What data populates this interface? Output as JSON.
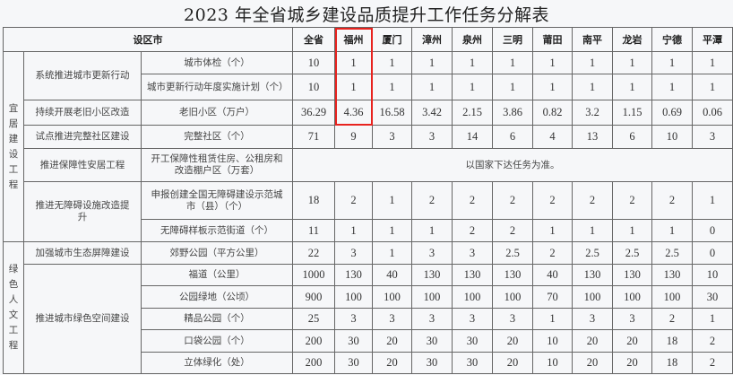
{
  "title": "2023 年全省城乡建设品质提升工作任务分解表",
  "header": {
    "region": "设区市",
    "cities": [
      "全省",
      "福州",
      "厦门",
      "漳州",
      "泉州",
      "三明",
      "莆田",
      "南平",
      "龙岩",
      "宁德",
      "平潭"
    ]
  },
  "groups": [
    {
      "label": "宜居建设工程",
      "label_chars": [
        "宜",
        "居",
        "建",
        "设",
        "工",
        "程"
      ]
    },
    {
      "label": "绿色人文工程",
      "label_chars": [
        "绿",
        "色",
        "人",
        "文",
        "工",
        "程"
      ]
    }
  ],
  "tasks": [
    "系统推进城市更新行动",
    "持续开展老旧小区改造",
    "试点推进完整社区建设",
    "推进保障性安居工程",
    "推进无障碍设施改造提升",
    "加强城市生态屏障建设",
    "推进城市绿色空间建设"
  ],
  "rows": [
    {
      "indicator": "城市体检（个）",
      "values": [
        "10",
        "1",
        "1",
        "1",
        "1",
        "1",
        "1",
        "1",
        "1",
        "1",
        "1"
      ]
    },
    {
      "indicator": "城市更新行动年度实施计划（个）",
      "values": [
        "10",
        "1",
        "1",
        "1",
        "1",
        "1",
        "1",
        "1",
        "1",
        "1",
        "1"
      ]
    },
    {
      "indicator": "老旧小区（万户）",
      "values": [
        "36.29",
        "4.36",
        "16.58",
        "3.42",
        "2.15",
        "3.86",
        "0.82",
        "3.2",
        "1.15",
        "0.69",
        "0.06"
      ]
    },
    {
      "indicator": "完整社区（个）",
      "values": [
        "71",
        "9",
        "3",
        "3",
        "14",
        "6",
        "4",
        "13",
        "6",
        "10",
        "3"
      ]
    },
    {
      "indicator": "开工保障性租赁住房、公租房和改造棚户区（万套）",
      "note": "以国家下达任务为准。"
    },
    {
      "indicator": "申报创建全国无障碍建设示范城市（县）（个）",
      "values": [
        "18",
        "2",
        "1",
        "2",
        "2",
        "2",
        "2",
        "2",
        "2",
        "2",
        "1"
      ]
    },
    {
      "indicator": "无障碍样板示范街道（个）",
      "values": [
        "11",
        "1",
        "1",
        "1",
        "2",
        "2",
        "1",
        "1",
        "1",
        "1",
        "0"
      ]
    },
    {
      "indicator": "郊野公园（平方公里）",
      "values": [
        "22",
        "3",
        "1",
        "3",
        "3",
        "2.5",
        "2",
        "2.5",
        "2.5",
        "2.5",
        "0"
      ]
    },
    {
      "indicator": "福道（公里）",
      "values": [
        "1000",
        "130",
        "40",
        "130",
        "130",
        "130",
        "40",
        "130",
        "130",
        "130",
        "10"
      ]
    },
    {
      "indicator": "公园绿地（公顷）",
      "values": [
        "900",
        "100",
        "100",
        "100",
        "100",
        "100",
        "70",
        "100",
        "100",
        "100",
        "30"
      ]
    },
    {
      "indicator": "精品公园（个）",
      "values": [
        "25",
        "3",
        "3",
        "3",
        "3",
        "3",
        "1",
        "3",
        "3",
        "2",
        "1"
      ]
    },
    {
      "indicator": "口袋公园（个）",
      "values": [
        "200",
        "30",
        "20",
        "30",
        "30",
        "20",
        "10",
        "20",
        "20",
        "18",
        "2"
      ]
    },
    {
      "indicator": "立体绿化（处）",
      "values": [
        "200",
        "30",
        "20",
        "30",
        "30",
        "20",
        "10",
        "20",
        "20",
        "18",
        "2"
      ]
    }
  ],
  "highlight_color": "#e8231f",
  "highlighted_column": "福州"
}
